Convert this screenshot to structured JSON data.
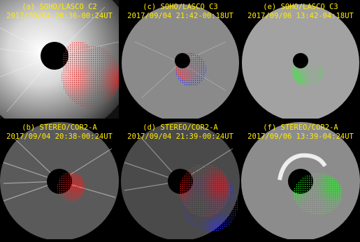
{
  "panels": [
    {
      "id": "a",
      "line1": "(a) SOHO/LASCO C2",
      "line2": "2017/09/04 20:36-00:24UT"
    },
    {
      "id": "c",
      "line1": "(c) SOHO/LASCO C3",
      "line2": "2017/09/04 21:42-00:18UT"
    },
    {
      "id": "e",
      "line1": "(e) SOHO/LASCO C3",
      "line2": "2017/09/06 13:42-04:18UT"
    },
    {
      "id": "b",
      "line1": "(b) STEREO/COR2-A",
      "line2": "2017/09/04 20:38-00:24UT"
    },
    {
      "id": "d",
      "line1": "(d) STEREO/COR2-A",
      "line2": "2017/09/04 21:39-00:24UT"
    },
    {
      "id": "f",
      "line1": "(f) STEREO/COR2-A",
      "line2": "2017/09/06 13:39-04:24UT"
    }
  ],
  "colors": {
    "label": "#ffea00",
    "red_mesh": "#ff2020",
    "blue_mesh": "#3030ff",
    "green_mesh": "#20ff20"
  }
}
